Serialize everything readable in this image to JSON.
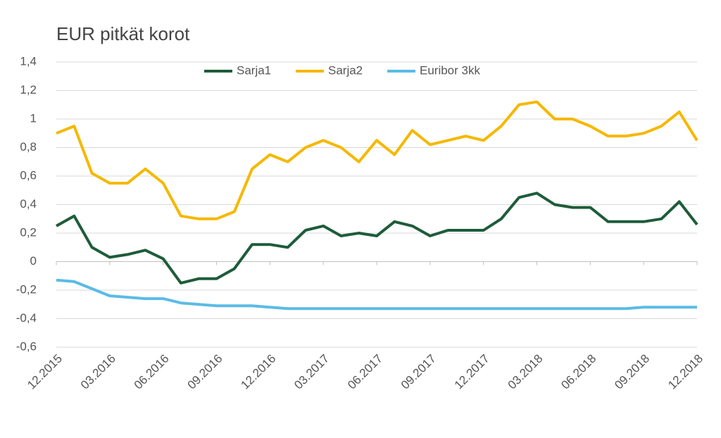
{
  "chart_data": {
    "type": "line",
    "title": "EUR pitkät korot",
    "categories": [
      "12.2015",
      null,
      null,
      "03.2016",
      null,
      null,
      "06.2016",
      null,
      null,
      "09.2016",
      null,
      null,
      "12.2016",
      null,
      null,
      "03.2017",
      null,
      null,
      "06.2017",
      null,
      null,
      "09.2017",
      null,
      null,
      "12.2017",
      null,
      null,
      "03.2018",
      null,
      null,
      "06.2018",
      null,
      null,
      "09.2018",
      null,
      null,
      "12.2018"
    ],
    "series": [
      {
        "name": "Sarja1",
        "color": "#1e5c3a",
        "values": [
          0.25,
          0.32,
          0.1,
          0.03,
          0.05,
          0.08,
          0.02,
          -0.15,
          -0.12,
          -0.12,
          -0.05,
          0.12,
          0.12,
          0.1,
          0.22,
          0.25,
          0.18,
          0.2,
          0.18,
          0.28,
          0.25,
          0.18,
          0.22,
          0.22,
          0.22,
          0.3,
          0.45,
          0.48,
          0.4,
          0.38,
          0.38,
          0.28,
          0.28,
          0.28,
          0.3,
          0.42,
          0.26
        ]
      },
      {
        "name": "Sarja2",
        "color": "#f5b800",
        "values": [
          0.9,
          0.95,
          0.62,
          0.55,
          0.55,
          0.65,
          0.55,
          0.32,
          0.3,
          0.3,
          0.35,
          0.65,
          0.75,
          0.7,
          0.8,
          0.85,
          0.8,
          0.7,
          0.85,
          0.75,
          0.92,
          0.82,
          0.85,
          0.88,
          0.85,
          0.95,
          1.1,
          1.12,
          1.0,
          1.0,
          0.95,
          0.88,
          0.88,
          0.9,
          0.95,
          1.05,
          0.85
        ]
      },
      {
        "name": "Euribor 3kk",
        "color": "#5bbbe6",
        "values": [
          -0.13,
          -0.14,
          -0.19,
          -0.24,
          -0.25,
          -0.26,
          -0.26,
          -0.29,
          -0.3,
          -0.31,
          -0.31,
          -0.31,
          -0.32,
          -0.33,
          -0.33,
          -0.33,
          -0.33,
          -0.33,
          -0.33,
          -0.33,
          -0.33,
          -0.33,
          -0.33,
          -0.33,
          -0.33,
          -0.33,
          -0.33,
          -0.33,
          -0.33,
          -0.33,
          -0.33,
          -0.33,
          -0.33,
          -0.32,
          -0.32,
          -0.32,
          -0.32
        ]
      }
    ],
    "ylim": [
      -0.6,
      1.4
    ],
    "yticks": [
      {
        "value": -0.6,
        "label": "-0,6"
      },
      {
        "value": -0.4,
        "label": "-0,4"
      },
      {
        "value": -0.2,
        "label": "-0,2"
      },
      0,
      {
        "value": 0.2,
        "label": "0,2"
      },
      {
        "value": 0.4,
        "label": "0,4"
      },
      {
        "value": 0.6,
        "label": "0,6"
      },
      {
        "value": 0.8,
        "label": "0,8"
      },
      1,
      {
        "value": 1.2,
        "label": "1,2"
      },
      {
        "value": 1.4,
        "label": "1,4"
      }
    ],
    "grid": true,
    "legend": "top"
  }
}
